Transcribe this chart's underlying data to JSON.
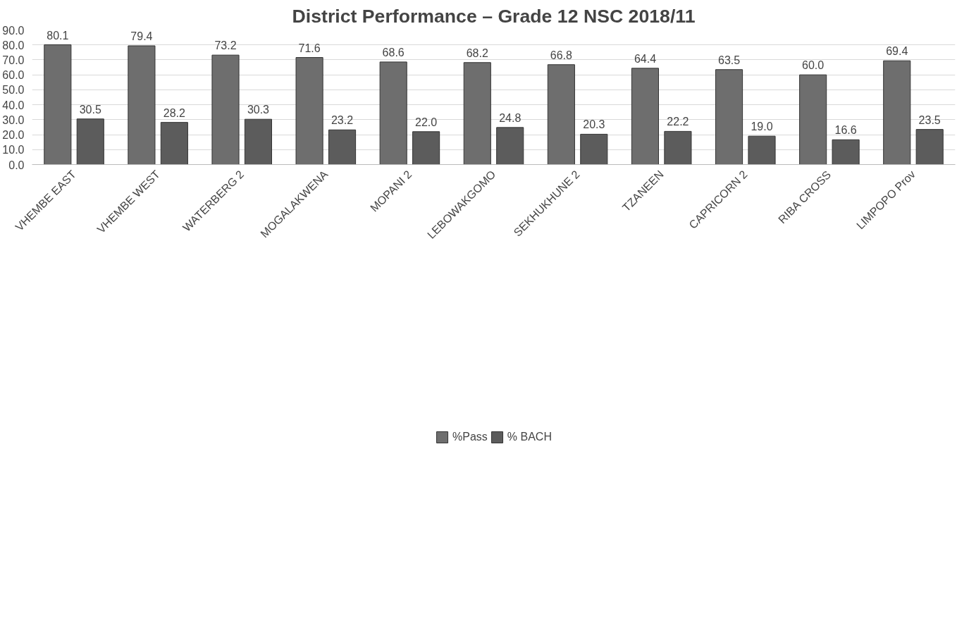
{
  "chart_data": {
    "type": "bar",
    "title": "District Performance – Grade 12 NSC 2018/11",
    "categories": [
      "VHEMBE EAST",
      "VHEMBE WEST",
      "WATERBERG 2",
      "MOGALAKWENA",
      "MOPANI 2",
      "LEBOWAKGOMO",
      "SEKHUKHUNE 2",
      "TZANEEN",
      "CAPRICORN 2",
      "RIBA CROSS",
      "LIMPOPO Prov"
    ],
    "series": [
      {
        "name": "%Pass",
        "color": "#6e6e6e",
        "values": [
          80.1,
          79.4,
          73.2,
          71.6,
          68.6,
          68.2,
          66.8,
          64.4,
          63.5,
          60.0,
          69.4
        ],
        "value_labels": [
          "80.1",
          "79.4",
          "73.2",
          "71.6",
          "68.6",
          "68.2",
          "66.8",
          "64.4",
          "63.5",
          "60.0",
          "69.4"
        ]
      },
      {
        "name": "% BACH",
        "color": "#5c5c5c",
        "values": [
          30.5,
          28.2,
          30.3,
          23.2,
          22.0,
          24.8,
          20.3,
          22.2,
          19.0,
          16.6,
          23.5
        ],
        "value_labels": [
          "30.5",
          "28.2",
          "30.3",
          "23.2",
          "22.0",
          "24.8",
          "20.3",
          "22.2",
          "19.0",
          "16.6",
          "23.5"
        ]
      }
    ],
    "ylim": [
      0,
      90
    ],
    "yticks": [
      {
        "value": 0,
        "label": "0.0"
      },
      {
        "value": 10,
        "label": "10.0"
      },
      {
        "value": 20,
        "label": "20.0"
      },
      {
        "value": 30,
        "label": "30.0"
      },
      {
        "value": 40,
        "label": "40.0"
      },
      {
        "value": 50,
        "label": "50.0"
      },
      {
        "value": 60,
        "label": "60.0"
      },
      {
        "value": 70,
        "label": "70.0"
      },
      {
        "value": 80,
        "label": "80.0"
      },
      {
        "value": 90,
        "label": "90.0"
      }
    ],
    "grid": "y",
    "legend": "bottom"
  }
}
